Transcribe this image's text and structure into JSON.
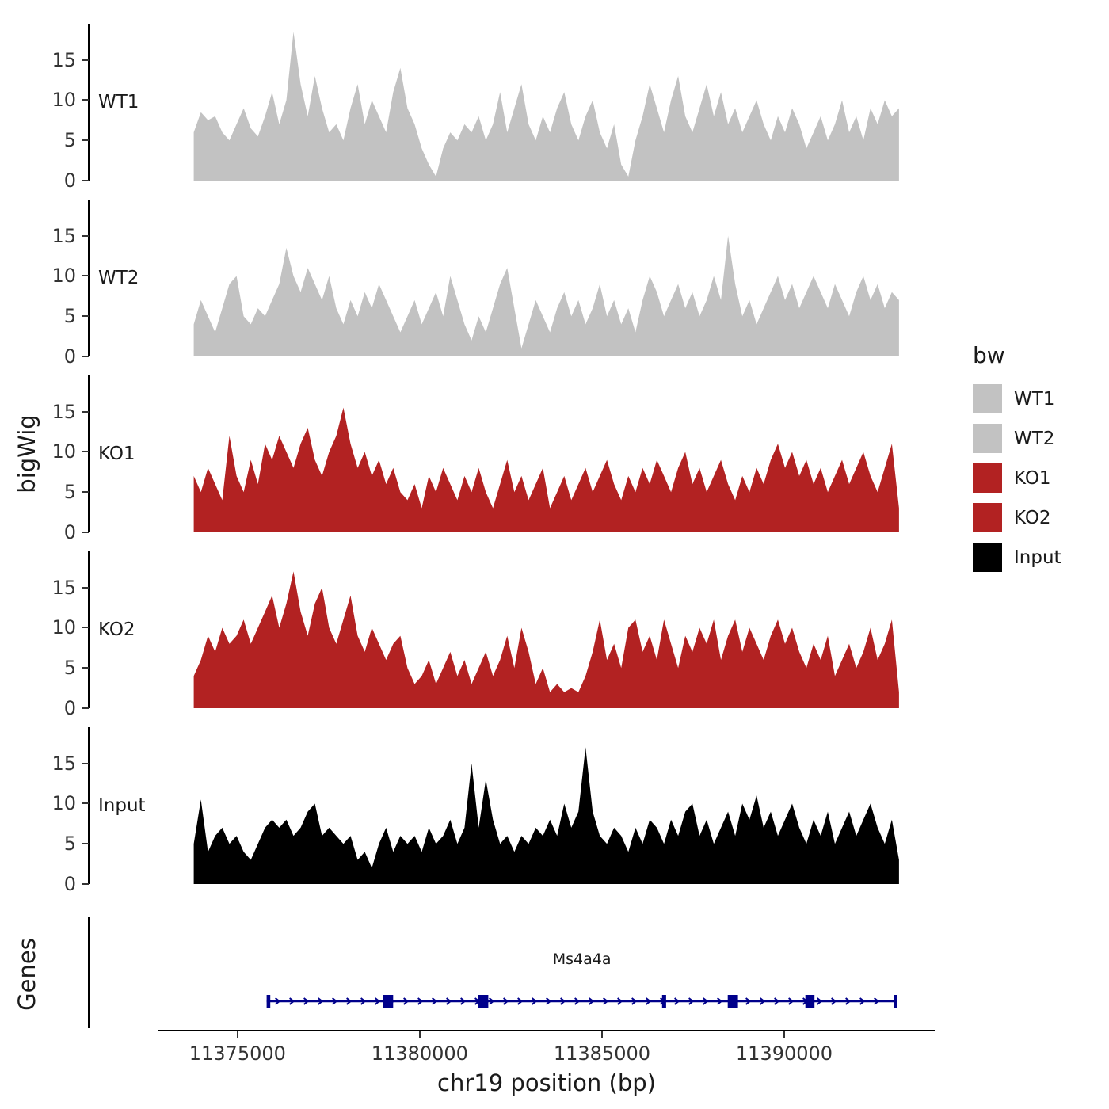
{
  "figure": {
    "genes_label": "Genes"
  },
  "legend": {
    "title": "bw",
    "items": [
      {
        "label": "WT1",
        "color": "#c2c2c2"
      },
      {
        "label": "WT2",
        "color": "#c2c2c2"
      },
      {
        "label": "KO1",
        "color": "#b22222"
      },
      {
        "label": "KO2",
        "color": "#b22222"
      },
      {
        "label": "Input",
        "color": "#000000"
      }
    ]
  },
  "chart_data": {
    "type": "area",
    "title": "",
    "xlabel": "chr19 position (bp)",
    "ylabel": "bigWig",
    "x_domain": [
      11372830,
      11394130
    ],
    "x_ticks": [
      11375000,
      11380000,
      11385000,
      11390000
    ],
    "x_tick_labels": [
      "11375000",
      "11380000",
      "11385000",
      "11390000"
    ],
    "y_ticks": [
      0,
      5,
      10,
      15
    ],
    "ylim": [
      0,
      19.5
    ],
    "signal_x_start": 11373800,
    "signal_x_end": 11393150,
    "tracks": [
      {
        "name": "WT1",
        "color": "#c2c2c2",
        "values": [
          6,
          8.5,
          7.5,
          8,
          6,
          5,
          7,
          9,
          6.5,
          5.5,
          8,
          11,
          7,
          10,
          18.5,
          12,
          8,
          13,
          9,
          6,
          7,
          5,
          9,
          12,
          7,
          10,
          8,
          6,
          11,
          14,
          9,
          7,
          4,
          2,
          0.5,
          4,
          6,
          5,
          7,
          6,
          8,
          5,
          7,
          11,
          6,
          9,
          12,
          7,
          5,
          8,
          6,
          9,
          11,
          7,
          5,
          8,
          10,
          6,
          4,
          7,
          2,
          0.5,
          5,
          8,
          12,
          9,
          6,
          10,
          13,
          8,
          6,
          9,
          12,
          8,
          11,
          7,
          9,
          6,
          8,
          10,
          7,
          5,
          8,
          6,
          9,
          7,
          4,
          6,
          8,
          5,
          7,
          10,
          6,
          8,
          5,
          9,
          7,
          10,
          8,
          9
        ]
      },
      {
        "name": "WT2",
        "color": "#c2c2c2",
        "values": [
          4,
          7,
          5,
          3,
          6,
          9,
          10,
          5,
          4,
          6,
          5,
          7,
          9,
          13.5,
          10,
          8,
          11,
          9,
          7,
          10,
          6,
          4,
          7,
          5,
          8,
          6,
          9,
          7,
          5,
          3,
          5,
          7,
          4,
          6,
          8,
          5,
          10,
          7,
          4,
          2,
          5,
          3,
          6,
          9,
          11,
          6,
          1,
          4,
          7,
          5,
          3,
          6,
          8,
          5,
          7,
          4,
          6,
          9,
          5,
          7,
          4,
          6,
          3,
          7,
          10,
          8,
          5,
          7,
          9,
          6,
          8,
          5,
          7,
          10,
          7,
          15,
          9,
          5,
          7,
          4,
          6,
          8,
          10,
          7,
          9,
          6,
          8,
          10,
          8,
          6,
          9,
          7,
          5,
          8,
          10,
          7,
          9,
          6,
          8,
          7
        ]
      },
      {
        "name": "KO1",
        "color": "#b22222",
        "values": [
          7,
          5,
          8,
          6,
          4,
          12,
          7,
          5,
          9,
          6,
          11,
          9,
          12,
          10,
          8,
          11,
          13,
          9,
          7,
          10,
          12,
          15.5,
          11,
          8,
          10,
          7,
          9,
          6,
          8,
          5,
          4,
          6,
          3,
          7,
          5,
          8,
          6,
          4,
          7,
          5,
          8,
          5,
          3,
          6,
          9,
          5,
          7,
          4,
          6,
          8,
          3,
          5,
          7,
          4,
          6,
          8,
          5,
          7,
          9,
          6,
          4,
          7,
          5,
          8,
          6,
          9,
          7,
          5,
          8,
          10,
          6,
          8,
          5,
          7,
          9,
          6,
          4,
          7,
          5,
          8,
          6,
          9,
          11,
          8,
          10,
          7,
          9,
          6,
          8,
          5,
          7,
          9,
          6,
          8,
          10,
          7,
          5,
          8,
          11,
          3
        ]
      },
      {
        "name": "KO2",
        "color": "#b22222",
        "values": [
          4,
          6,
          9,
          7,
          10,
          8,
          9,
          11,
          8,
          10,
          12,
          14,
          10,
          13,
          17,
          12,
          9,
          13,
          15,
          10,
          8,
          11,
          14,
          9,
          7,
          10,
          8,
          6,
          8,
          9,
          5,
          3,
          4,
          6,
          3,
          5,
          7,
          4,
          6,
          3,
          5,
          7,
          4,
          6,
          9,
          5,
          10,
          7,
          3,
          5,
          2,
          3,
          2,
          2.5,
          2,
          4,
          7,
          11,
          6,
          8,
          5,
          10,
          11,
          7,
          9,
          6,
          11,
          8,
          5,
          9,
          7,
          10,
          8,
          11,
          6,
          9,
          11,
          7,
          10,
          8,
          6,
          9,
          11,
          8,
          10,
          7,
          5,
          8,
          6,
          9,
          4,
          6,
          8,
          5,
          7,
          10,
          6,
          8,
          11,
          2
        ]
      },
      {
        "name": "Input",
        "color": "#000000",
        "values": [
          5,
          10.5,
          4,
          6,
          7,
          5,
          6,
          4,
          3,
          5,
          7,
          8,
          7,
          8,
          6,
          7,
          9,
          10,
          6,
          7,
          6,
          5,
          6,
          3,
          4,
          2,
          5,
          7,
          4,
          6,
          5,
          6,
          4,
          7,
          5,
          6,
          8,
          5,
          7,
          15,
          7,
          13,
          8,
          5,
          6,
          4,
          6,
          5,
          7,
          6,
          8,
          6,
          10,
          7,
          9,
          17,
          9,
          6,
          5,
          7,
          6,
          4,
          7,
          5,
          8,
          7,
          5,
          8,
          6,
          9,
          10,
          6,
          8,
          5,
          7,
          9,
          6,
          10,
          8,
          11,
          7,
          9,
          6,
          8,
          10,
          7,
          5,
          8,
          6,
          9,
          5,
          7,
          9,
          6,
          8,
          10,
          7,
          5,
          8,
          3
        ]
      }
    ],
    "gene": {
      "name": "Ms4a4a",
      "strand": "+",
      "color": "#00008b",
      "start": 11375800,
      "end": 11393100,
      "exons": [
        [
          11375800,
          11375900
        ],
        [
          11379000,
          11379270
        ],
        [
          11381600,
          11381880
        ],
        [
          11386650,
          11386760
        ],
        [
          11388450,
          11388730
        ],
        [
          11390580,
          11390830
        ],
        [
          11393000,
          11393100
        ]
      ]
    }
  }
}
